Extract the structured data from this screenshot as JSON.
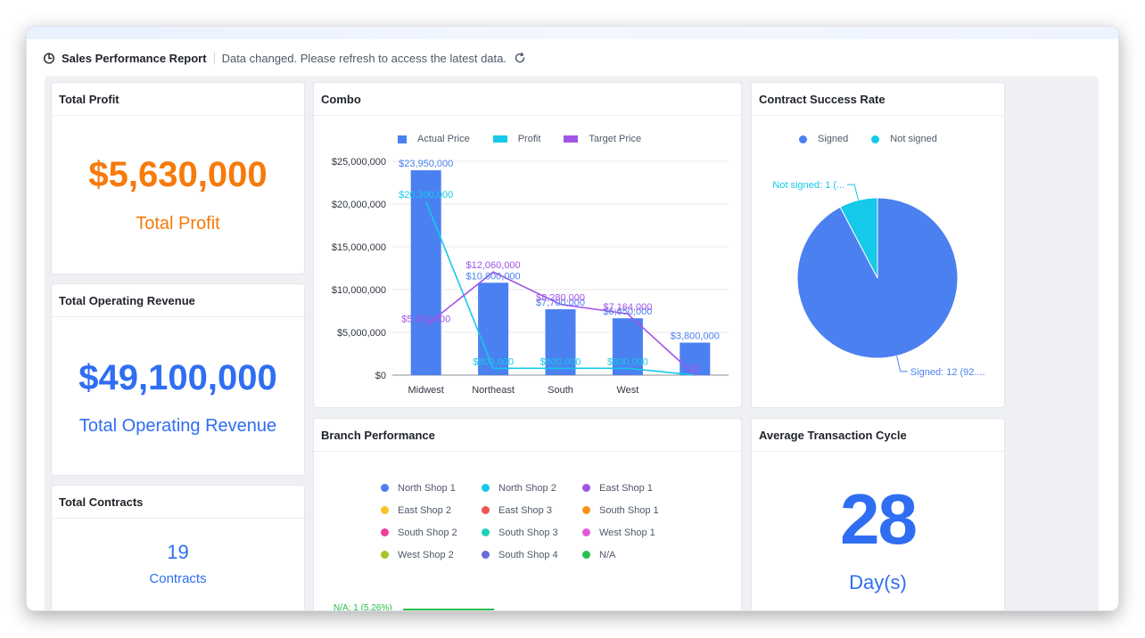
{
  "header": {
    "title": "Sales Performance Report",
    "notice": "Data changed. Please refresh to access the latest data."
  },
  "cards": {
    "total_profit": {
      "title": "Total Profit",
      "value": "$5,630,000",
      "label": "Total Profit",
      "color": "#f77a0a"
    },
    "total_revenue": {
      "title": "Total Operating Revenue",
      "value": "$49,100,000",
      "label": "Total Operating Revenue",
      "color": "#2f6ef2"
    },
    "total_contracts": {
      "title": "Total Contracts",
      "value": "19",
      "label": "Contracts",
      "color": "#2f6ef2"
    },
    "avg_cycle": {
      "title": "Average Transaction Cycle",
      "value": "28",
      "label": "Day(s)",
      "color": "#2f6ef2"
    },
    "combo": {
      "title": "Combo"
    },
    "success": {
      "title": "Contract Success Rate"
    },
    "branch": {
      "title": "Branch Performance"
    }
  },
  "chart_data": [
    {
      "type": "bar",
      "name_key": "combo",
      "categories": [
        "Midwest",
        "Northeast",
        "South",
        "West",
        ""
      ],
      "yticks": [
        "$0",
        "$5,000,000",
        "$10,000,000",
        "$15,000,000",
        "$20,000,000",
        "$25,000,000"
      ],
      "ylim": [
        0,
        25000000
      ],
      "series": [
        {
          "name": "Actual Price",
          "kind": "bar",
          "color": "#4b80f0",
          "values": [
            23950000,
            10800000,
            7700000,
            6650000,
            3800000
          ],
          "labels": [
            "$23,950,000",
            "$10,800,000",
            "$7,700,000",
            "$6,650,000",
            "$3,800,000"
          ]
        },
        {
          "name": "Profit",
          "kind": "line",
          "color": "#14c9e9",
          "values": [
            20300000,
            800000,
            800000,
            800000,
            0
          ],
          "labels": [
            "$20,300,000",
            "$800,000",
            "$800,000",
            "$800,000",
            "$0"
          ]
        },
        {
          "name": "Target Price",
          "kind": "line",
          "color": "#a355e8",
          "values": [
            5800000,
            12060000,
            8280000,
            7164000,
            0
          ],
          "labels": [
            "$5,800,000",
            "$12,060,000",
            "$8,280,000",
            "$7,164,000",
            "$0"
          ]
        }
      ],
      "grid": true,
      "legend": "top"
    },
    {
      "type": "pie",
      "name_key": "success",
      "series": [
        {
          "name": "Signed",
          "value": 12,
          "color": "#4b80f0",
          "label": "Signed: 12 (92...."
        },
        {
          "name": "Not signed",
          "value": 1,
          "color": "#14c9e9",
          "label": "Not signed: 1 (..."
        }
      ],
      "legend": "top"
    },
    {
      "type": "bar",
      "name_key": "branch",
      "legend_items": [
        {
          "name": "North Shop 1",
          "color": "#4b80f0"
        },
        {
          "name": "North Shop 2",
          "color": "#14c9e9"
        },
        {
          "name": "East Shop 1",
          "color": "#a355e8"
        },
        {
          "name": "East Shop 2",
          "color": "#f7c325"
        },
        {
          "name": "East Shop 3",
          "color": "#ef5350"
        },
        {
          "name": "South Shop 1",
          "color": "#f7921e"
        },
        {
          "name": "South Shop 2",
          "color": "#ee3fa0"
        },
        {
          "name": "South Shop 3",
          "color": "#1ed2b8"
        },
        {
          "name": "West Shop 1",
          "color": "#e35bd9"
        },
        {
          "name": "West Shop 2",
          "color": "#a3c628"
        },
        {
          "name": "South Shop 4",
          "color": "#6a6bd8"
        },
        {
          "name": "N/A",
          "color": "#28c04a"
        }
      ],
      "visible_bar_label": "N/A: 1 (5.26%)"
    }
  ]
}
